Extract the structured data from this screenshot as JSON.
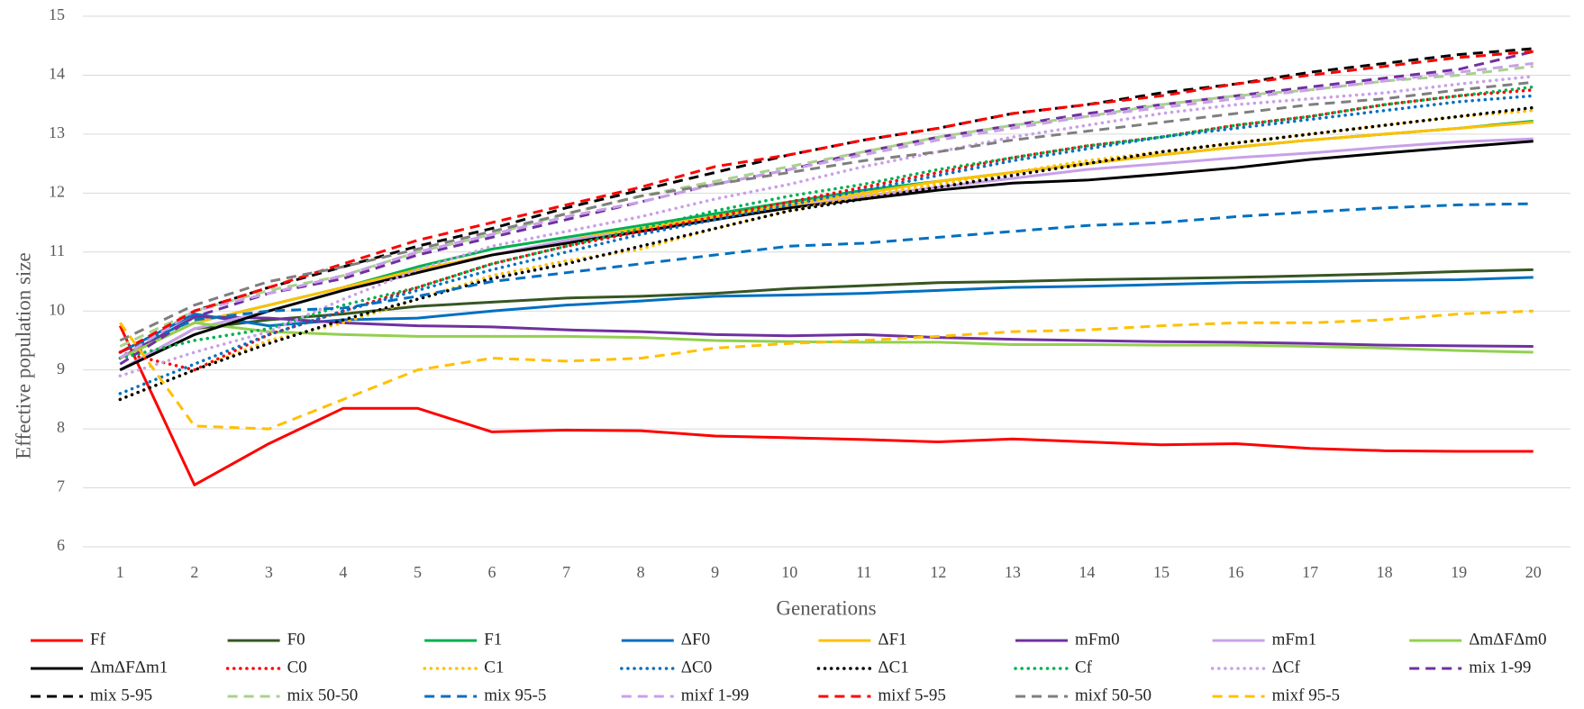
{
  "chart_data": {
    "type": "line",
    "x_label": "Generations",
    "y_label": "Effective population size",
    "categories": [
      "1",
      "2",
      "3",
      "4",
      "5",
      "6",
      "7",
      "8",
      "9",
      "10",
      "11",
      "12",
      "13",
      "14",
      "15",
      "16",
      "17",
      "18",
      "19",
      "20"
    ],
    "ylim": [
      6,
      15
    ],
    "yticks": [
      6,
      7,
      8,
      9,
      10,
      11,
      12,
      13,
      14,
      15
    ],
    "grid": true,
    "legend": "bottom",
    "series": [
      {
        "name": "Ff",
        "color": "#ff0000",
        "style": "solid",
        "values": [
          9.75,
          7.05,
          7.75,
          8.35,
          8.35,
          7.95,
          7.98,
          7.97,
          7.88,
          7.85,
          7.82,
          7.78,
          7.83,
          7.78,
          7.73,
          7.75,
          7.67,
          7.63,
          7.62,
          7.62
        ]
      },
      {
        "name": "F0",
        "color": "#375623",
        "style": "solid",
        "values": [
          9.0,
          9.7,
          9.85,
          9.95,
          10.08,
          10.15,
          10.22,
          10.25,
          10.3,
          10.38,
          10.43,
          10.48,
          10.5,
          10.53,
          10.55,
          10.57,
          10.6,
          10.63,
          10.67,
          10.7
        ]
      },
      {
        "name": "F1",
        "color": "#00b050",
        "style": "solid",
        "values": [
          9.2,
          9.8,
          10.1,
          10.4,
          10.75,
          11.05,
          11.25,
          11.45,
          11.65,
          11.85,
          12.05,
          12.2,
          12.35,
          12.5,
          12.65,
          12.78,
          12.9,
          13.0,
          13.1,
          13.22
        ]
      },
      {
        "name": "ΔF0",
        "color": "#0070c0",
        "style": "solid",
        "values": [
          9.3,
          9.95,
          9.75,
          9.85,
          9.88,
          10.0,
          10.1,
          10.17,
          10.25,
          10.27,
          10.3,
          10.35,
          10.4,
          10.42,
          10.45,
          10.48,
          10.5,
          10.52,
          10.53,
          10.57
        ]
      },
      {
        "name": "ΔF1",
        "color": "#ffc000",
        "style": "solid",
        "values": [
          9.2,
          9.8,
          10.1,
          10.4,
          10.7,
          10.95,
          11.2,
          11.4,
          11.6,
          11.8,
          12.0,
          12.2,
          12.35,
          12.5,
          12.65,
          12.78,
          12.9,
          13.0,
          13.1,
          13.2
        ]
      },
      {
        "name": "mFm0",
        "color": "#7030a0",
        "style": "solid",
        "values": [
          9.2,
          9.9,
          9.88,
          9.8,
          9.75,
          9.73,
          9.68,
          9.65,
          9.6,
          9.58,
          9.6,
          9.55,
          9.52,
          9.5,
          9.48,
          9.47,
          9.45,
          9.42,
          9.41,
          9.4
        ]
      },
      {
        "name": "mFm1",
        "color": "#c9a0e8",
        "style": "solid",
        "values": [
          9.0,
          9.7,
          10.0,
          10.35,
          10.65,
          10.95,
          11.2,
          11.35,
          11.55,
          11.75,
          11.95,
          12.1,
          12.25,
          12.4,
          12.5,
          12.6,
          12.68,
          12.78,
          12.87,
          12.92
        ]
      },
      {
        "name": "ΔmΔFΔm0",
        "color": "#92d050",
        "style": "solid",
        "values": [
          9.2,
          9.8,
          9.65,
          9.6,
          9.57,
          9.57,
          9.57,
          9.55,
          9.5,
          9.48,
          9.47,
          9.47,
          9.43,
          9.43,
          9.42,
          9.42,
          9.4,
          9.37,
          9.33,
          9.3
        ]
      },
      {
        "name": "ΔmΔFΔm1",
        "color": "#000000",
        "style": "solid",
        "values": [
          9.0,
          9.6,
          10.0,
          10.35,
          10.65,
          10.95,
          11.15,
          11.35,
          11.55,
          11.75,
          11.9,
          12.05,
          12.17,
          12.22,
          12.32,
          12.43,
          12.57,
          12.68,
          12.78,
          12.88
        ]
      },
      {
        "name": "C0",
        "color": "#ff0000",
        "style": "dotted",
        "values": [
          9.3,
          9.0,
          9.6,
          10.0,
          10.4,
          10.8,
          11.1,
          11.35,
          11.6,
          11.85,
          12.1,
          12.35,
          12.6,
          12.8,
          12.95,
          13.15,
          13.3,
          13.5,
          13.65,
          13.75
        ]
      },
      {
        "name": "C1",
        "color": "#ffc000",
        "style": "dotted",
        "values": [
          8.5,
          9.0,
          9.5,
          9.8,
          10.2,
          10.6,
          10.85,
          11.05,
          11.4,
          11.7,
          11.95,
          12.15,
          12.35,
          12.55,
          12.7,
          12.85,
          13.0,
          13.15,
          13.3,
          13.4
        ]
      },
      {
        "name": "ΔC0",
        "color": "#0070c0",
        "style": "dotted",
        "values": [
          8.6,
          9.1,
          9.6,
          10.0,
          10.35,
          10.7,
          11.0,
          11.3,
          11.55,
          11.8,
          12.05,
          12.3,
          12.55,
          12.75,
          12.95,
          13.1,
          13.25,
          13.4,
          13.55,
          13.65
        ]
      },
      {
        "name": "ΔC1",
        "color": "#000000",
        "style": "dotted",
        "values": [
          8.5,
          9.0,
          9.45,
          9.85,
          10.2,
          10.55,
          10.8,
          11.1,
          11.4,
          11.7,
          11.9,
          12.1,
          12.3,
          12.5,
          12.7,
          12.85,
          13.0,
          13.15,
          13.3,
          13.45
        ]
      },
      {
        "name": "Cf",
        "color": "#00b050",
        "style": "dotted",
        "values": [
          9.2,
          9.5,
          9.7,
          10.1,
          10.4,
          10.8,
          11.1,
          11.4,
          11.7,
          11.95,
          12.15,
          12.4,
          12.6,
          12.8,
          12.95,
          13.15,
          13.3,
          13.5,
          13.65,
          13.8
        ]
      },
      {
        "name": "ΔCf",
        "color": "#c9a0e8",
        "style": "dotted",
        "values": [
          8.9,
          9.3,
          9.65,
          10.2,
          10.7,
          11.1,
          11.35,
          11.6,
          11.9,
          12.15,
          12.45,
          12.7,
          12.95,
          13.15,
          13.35,
          13.5,
          13.6,
          13.7,
          13.85,
          13.98
        ]
      },
      {
        "name": "mix 1-99",
        "color": "#7030a0",
        "style": "dashed",
        "values": [
          9.1,
          9.9,
          10.3,
          10.55,
          10.95,
          11.25,
          11.55,
          11.85,
          12.15,
          12.4,
          12.7,
          12.95,
          13.15,
          13.35,
          13.5,
          13.65,
          13.8,
          13.95,
          14.1,
          14.4
        ]
      },
      {
        "name": "mix 5-95",
        "color": "#000000",
        "style": "dashed",
        "values": [
          9.2,
          10.0,
          10.4,
          10.75,
          11.1,
          11.4,
          11.75,
          12.05,
          12.35,
          12.65,
          12.9,
          13.1,
          13.35,
          13.5,
          13.7,
          13.85,
          14.05,
          14.2,
          14.35,
          14.45
        ]
      },
      {
        "name": "mix 50-50",
        "color": "#a9d18e",
        "style": "dashed",
        "values": [
          9.4,
          10.0,
          10.35,
          10.6,
          11.0,
          11.3,
          11.65,
          11.95,
          12.2,
          12.45,
          12.7,
          12.95,
          13.15,
          13.3,
          13.5,
          13.65,
          13.75,
          13.9,
          14.0,
          14.15
        ]
      },
      {
        "name": "mix 95-5",
        "color": "#0070c0",
        "style": "dashed",
        "values": [
          9.3,
          9.85,
          10.0,
          10.05,
          10.25,
          10.5,
          10.65,
          10.8,
          10.95,
          11.1,
          11.15,
          11.25,
          11.35,
          11.45,
          11.5,
          11.6,
          11.68,
          11.75,
          11.8,
          11.82
        ]
      },
      {
        "name": "mixf 1-99",
        "color": "#c9a0e8",
        "style": "dashed",
        "values": [
          9.2,
          10.0,
          10.3,
          10.6,
          11.0,
          11.3,
          11.6,
          11.85,
          12.15,
          12.4,
          12.65,
          12.9,
          13.1,
          13.3,
          13.45,
          13.6,
          13.75,
          13.9,
          14.05,
          14.2
        ]
      },
      {
        "name": "mixf 5-95",
        "color": "#ff0000",
        "style": "dashed",
        "values": [
          9.3,
          10.0,
          10.4,
          10.8,
          11.2,
          11.5,
          11.8,
          12.1,
          12.45,
          12.65,
          12.9,
          13.1,
          13.35,
          13.5,
          13.65,
          13.85,
          14.0,
          14.15,
          14.3,
          14.4
        ]
      },
      {
        "name": "mixf 50-50",
        "color": "#7f7f7f",
        "style": "dashed",
        "values": [
          9.5,
          10.1,
          10.5,
          10.75,
          11.05,
          11.35,
          11.65,
          11.95,
          12.15,
          12.35,
          12.55,
          12.7,
          12.9,
          13.05,
          13.2,
          13.35,
          13.5,
          13.6,
          13.75,
          13.88
        ]
      },
      {
        "name": "mixf 95-5",
        "color": "#ffc000",
        "style": "dashed",
        "values": [
          9.8,
          8.05,
          8.0,
          8.5,
          9.0,
          9.2,
          9.15,
          9.2,
          9.37,
          9.45,
          9.5,
          9.57,
          9.65,
          9.68,
          9.75,
          9.8,
          9.8,
          9.85,
          9.95,
          10.0
        ]
      }
    ]
  }
}
